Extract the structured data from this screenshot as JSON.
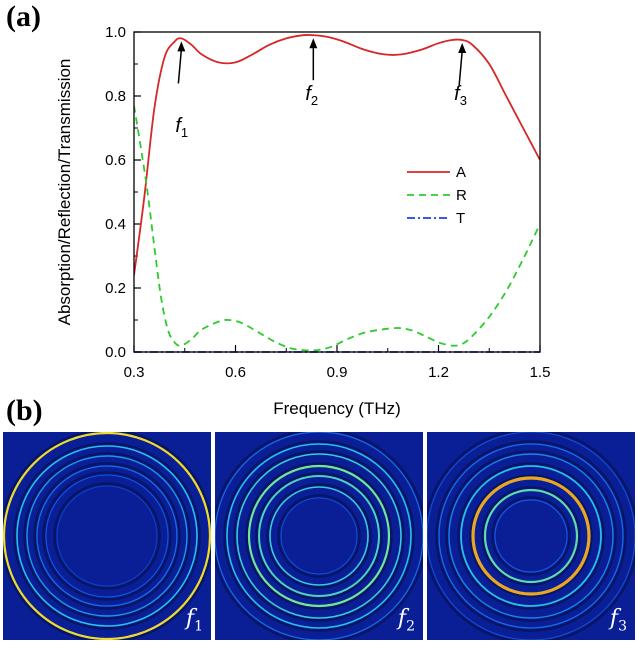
{
  "panels": {
    "a": "(a)",
    "b": "(b)"
  },
  "chart_data": {
    "type": "line",
    "xlabel": "Frequency (THz)",
    "ylabel": "Absorption/Reflection/Transmission",
    "xlim": [
      0.3,
      1.5
    ],
    "ylim": [
      0.0,
      1.0
    ],
    "xticks": [
      "0.3",
      "0.6",
      "0.9",
      "1.2",
      "1.5"
    ],
    "yticks": [
      "0.0",
      "0.2",
      "0.4",
      "0.6",
      "0.8",
      "1.0"
    ],
    "legend_position": "right-center",
    "series": [
      {
        "name": "A",
        "color": "#d62728",
        "style": "solid",
        "x": [
          0.3,
          0.33,
          0.36,
          0.39,
          0.42,
          0.44,
          0.47,
          0.5,
          0.55,
          0.6,
          0.65,
          0.7,
          0.75,
          0.8,
          0.83,
          0.87,
          0.92,
          0.98,
          1.04,
          1.09,
          1.15,
          1.2,
          1.24,
          1.27,
          1.3,
          1.35,
          1.4,
          1.45,
          1.5
        ],
        "y": [
          0.24,
          0.48,
          0.76,
          0.92,
          0.97,
          0.98,
          0.96,
          0.93,
          0.905,
          0.905,
          0.93,
          0.96,
          0.98,
          0.99,
          0.99,
          0.985,
          0.97,
          0.945,
          0.93,
          0.93,
          0.945,
          0.965,
          0.975,
          0.975,
          0.96,
          0.9,
          0.8,
          0.7,
          0.6
        ]
      },
      {
        "name": "R",
        "color": "#2dcc2d",
        "style": "dashed",
        "x": [
          0.3,
          0.32,
          0.34,
          0.36,
          0.38,
          0.4,
          0.42,
          0.44,
          0.47,
          0.5,
          0.55,
          0.58,
          0.62,
          0.67,
          0.72,
          0.77,
          0.83,
          0.88,
          0.93,
          0.98,
          1.03,
          1.08,
          1.12,
          1.16,
          1.2,
          1.24,
          1.27,
          1.3,
          1.35,
          1.4,
          1.45,
          1.5
        ],
        "y": [
          0.77,
          0.64,
          0.5,
          0.33,
          0.17,
          0.07,
          0.03,
          0.02,
          0.04,
          0.07,
          0.095,
          0.1,
          0.09,
          0.06,
          0.03,
          0.01,
          0.005,
          0.015,
          0.04,
          0.06,
          0.07,
          0.075,
          0.068,
          0.05,
          0.03,
          0.02,
          0.025,
          0.05,
          0.11,
          0.19,
          0.29,
          0.4
        ]
      },
      {
        "name": "T",
        "color": "#1f3cff",
        "style": "dashdot",
        "x": [
          0.3,
          1.5
        ],
        "y": [
          0.0,
          0.0
        ]
      }
    ],
    "annotations": [
      {
        "label": "f",
        "sub": "1",
        "x": 0.44,
        "y": 0.98
      },
      {
        "label": "f",
        "sub": "2",
        "x": 0.83,
        "y": 0.99
      },
      {
        "label": "f",
        "sub": "3",
        "x": 1.27,
        "y": 0.975
      }
    ]
  },
  "field_maps": [
    {
      "label": "f",
      "sub": "1"
    },
    {
      "label": "f",
      "sub": "2"
    },
    {
      "label": "f",
      "sub": "3"
    }
  ]
}
